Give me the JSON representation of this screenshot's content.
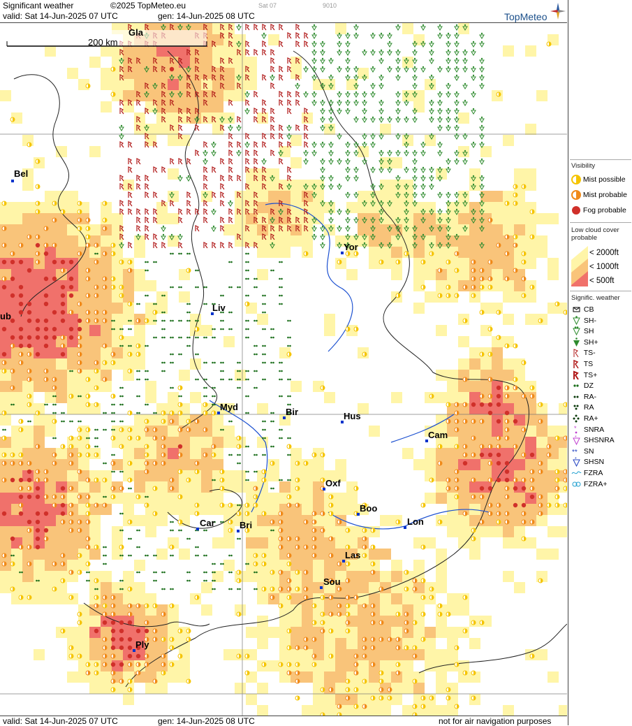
{
  "header": {
    "title": "Significant weather",
    "copyright": "©2025 TopMeteo.eu",
    "valid": "valid:  Sat  14-Jun-2025  07 UTC",
    "gen": "gen: 14-Jun-2025 08 UTC",
    "small_tag1": "Sat 07",
    "small_tag2": "9010",
    "brand": "TopMeteo"
  },
  "scale_label": "200 km",
  "cities": [
    {
      "name": "Gla"
    },
    {
      "name": "Bel"
    },
    {
      "name": "Yor"
    },
    {
      "name": "Liv"
    },
    {
      "name": "ub"
    },
    {
      "name": "Myd"
    },
    {
      "name": "Bir"
    },
    {
      "name": "Hus"
    },
    {
      "name": "Cam"
    },
    {
      "name": "Oxf"
    },
    {
      "name": "Boo"
    },
    {
      "name": "Lon"
    },
    {
      "name": "Car"
    },
    {
      "name": "Bri"
    },
    {
      "name": "Las"
    },
    {
      "name": "Sou"
    },
    {
      "name": "Ply"
    }
  ],
  "legend": {
    "visibility_title": "Visibility",
    "mist_possible": "Mist possible",
    "mist_probable": "Mist probable",
    "fog_probable": "Fog probable",
    "lowcloud_title": "Low cloud cover probable",
    "lc_2000": "< 2000ft",
    "lc_1000": "< 1000ft",
    "lc_500": "<   500ft",
    "sig_title": "Signific. weather",
    "items": [
      "CB",
      "SH-",
      "SH",
      "SH+",
      "TS-",
      "TS",
      "TS+",
      "DZ",
      "RA-",
      "RA",
      "RA+",
      "SNRA",
      "SHSNRA",
      "SN",
      "SHSN",
      "FZRA",
      "FZRA+"
    ]
  },
  "footer": {
    "valid": "valid:  Sat  14-Jun-2025  07 UTC",
    "gen": "gen: 14-Jun-2025 08 UTC",
    "note": "not for air navigation purposes"
  },
  "colors": {
    "lowcloud_2000": "#fff5a8",
    "lowcloud_1000": "#f9c47a",
    "lowcloud_500": "#f0716b",
    "mist_possible": "#f5c400",
    "mist_probable": "#f08a1a",
    "fog_probable": "#d0302a",
    "drizzle": "#1a6e1a",
    "shower": "#2e8b2e",
    "thunder": "#b01818",
    "city_marker": "#0033cc"
  }
}
